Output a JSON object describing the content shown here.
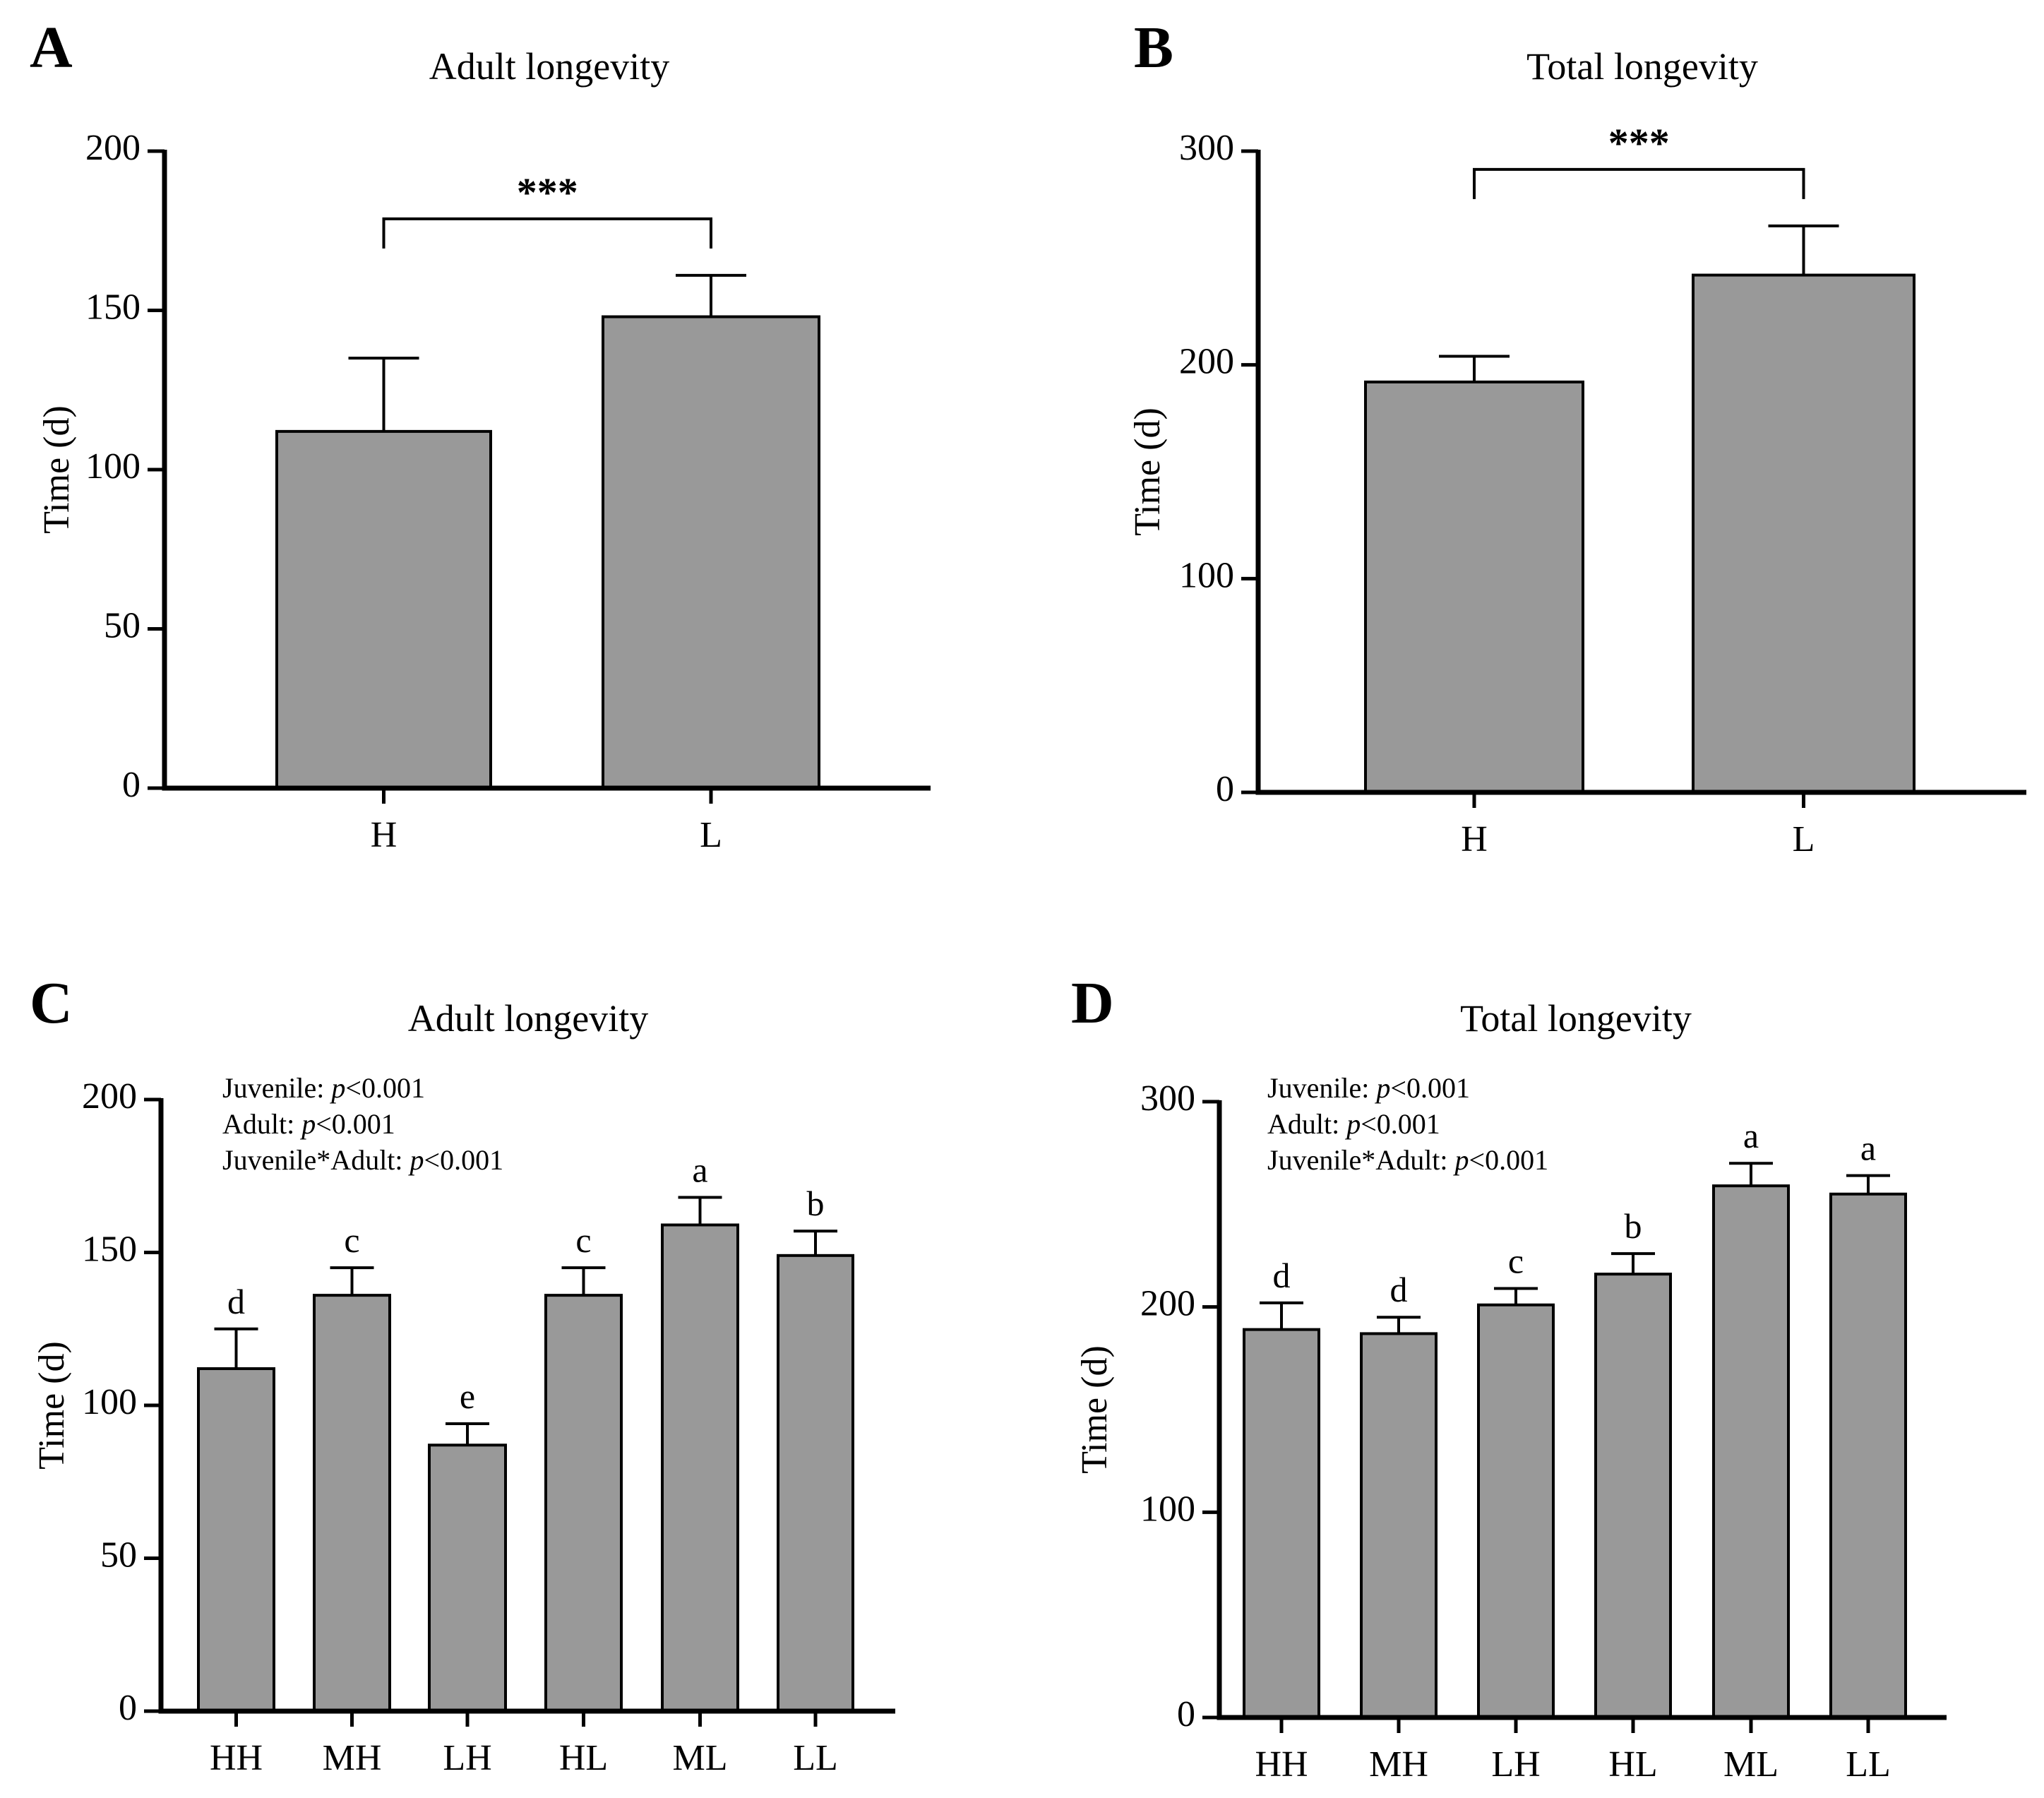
{
  "chart_data": [
    {
      "panel_label": "A",
      "type": "bar",
      "title": "Adult longevity",
      "ylabel": "Time (d)",
      "xlabel": "",
      "ylim": [
        0,
        200
      ],
      "yticks": [
        0,
        50,
        100,
        150,
        200
      ],
      "categories": [
        "H",
        "L"
      ],
      "values": [
        112,
        148
      ],
      "errors": [
        23,
        13
      ],
      "letters": [],
      "significance": {
        "from": 0,
        "to": 1,
        "label": "***"
      },
      "stats": []
    },
    {
      "panel_label": "B",
      "type": "bar",
      "title": "Total longevity",
      "ylabel": "Time (d)",
      "xlabel": "",
      "ylim": [
        0,
        300
      ],
      "yticks": [
        0,
        100,
        200,
        300
      ],
      "categories": [
        "H",
        "L"
      ],
      "values": [
        192,
        242
      ],
      "errors": [
        12,
        23
      ],
      "letters": [],
      "significance": {
        "from": 0,
        "to": 1,
        "label": "***"
      },
      "stats": []
    },
    {
      "panel_label": "C",
      "type": "bar",
      "title": "Adult longevity",
      "ylabel": "Time (d)",
      "xlabel": "",
      "ylim": [
        0,
        200
      ],
      "yticks": [
        0,
        50,
        100,
        150,
        200
      ],
      "categories": [
        "HH",
        "MH",
        "LH",
        "HL",
        "ML",
        "LL"
      ],
      "values": [
        112,
        136,
        87,
        136,
        159,
        149
      ],
      "errors": [
        13,
        9,
        7,
        9,
        9,
        8
      ],
      "letters": [
        "d",
        "c",
        "e",
        "c",
        "a",
        "b"
      ],
      "significance": null,
      "stats": [
        {
          "label": "Juvenile: ",
          "p": "p",
          "value": "<0.001"
        },
        {
          "label": "Adult: ",
          "p": "p",
          "value": "<0.001"
        },
        {
          "label": "Juvenile*Adult: ",
          "p": "p",
          "value": "<0.001"
        }
      ]
    },
    {
      "panel_label": "D",
      "type": "bar",
      "title": "Total longevity",
      "ylabel": "Time (d)",
      "xlabel": "",
      "ylim": [
        0,
        300
      ],
      "yticks": [
        0,
        100,
        200,
        300
      ],
      "categories": [
        "HH",
        "MH",
        "LH",
        "HL",
        "ML",
        "LL"
      ],
      "values": [
        189,
        187,
        201,
        216,
        259,
        255
      ],
      "errors": [
        13,
        8,
        8,
        10,
        11,
        9
      ],
      "letters": [
        "d",
        "d",
        "c",
        "b",
        "a",
        "a"
      ],
      "significance": null,
      "stats": [
        {
          "label": "Juvenile: ",
          "p": "p",
          "value": "<0.001"
        },
        {
          "label": "Adult: ",
          "p": "p",
          "value": "<0.001"
        },
        {
          "label": "Juvenile*Adult: ",
          "p": "p",
          "value": "<0.001"
        }
      ]
    }
  ],
  "colors": {
    "bar_fill": "#999999",
    "stroke": "#000000"
  }
}
